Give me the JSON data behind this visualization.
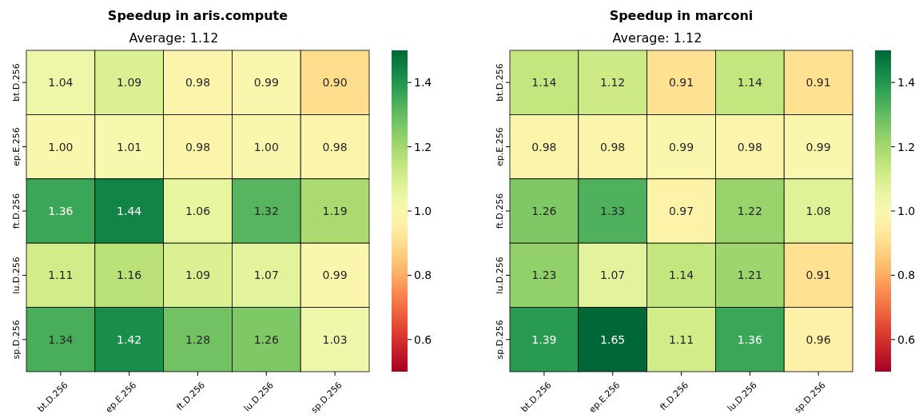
{
  "chart_data": [
    {
      "type": "heatmap",
      "title": "Speedup in aris.compute",
      "subtitle": "Average: 1.12",
      "categories": [
        "bt.D.256",
        "ep.E.256",
        "ft.D.256",
        "lu.D.256",
        "sp.D.256"
      ],
      "y_categories": [
        "bt.D.256",
        "ep.E.256",
        "ft.D.256",
        "lu.D.256",
        "sp.D.256"
      ],
      "cells": [
        [
          1.04,
          1.09,
          0.98,
          0.99,
          0.9
        ],
        [
          1.0,
          1.01,
          0.98,
          1.0,
          0.98
        ],
        [
          1.36,
          1.44,
          1.06,
          1.32,
          1.19
        ],
        [
          1.11,
          1.16,
          1.09,
          1.07,
          0.99
        ],
        [
          1.34,
          1.42,
          1.28,
          1.26,
          1.03
        ]
      ],
      "cell_labels": [
        [
          "1.04",
          "1.09",
          "0.98",
          "0.99",
          "0.90"
        ],
        [
          "1.00",
          "1.01",
          "0.98",
          "1.00",
          "0.98"
        ],
        [
          "1.36",
          "1.44",
          "1.06",
          "1.32",
          "1.19"
        ],
        [
          "1.11",
          "1.16",
          "1.09",
          "1.07",
          "0.99"
        ],
        [
          "1.34",
          "1.42",
          "1.28",
          "1.26",
          "1.03"
        ]
      ],
      "clim": [
        0.5,
        1.5
      ],
      "cticks": [
        0.6,
        0.8,
        {
          "value": 1,
          "label": "1.0"
        },
        1.2,
        1.4
      ]
    },
    {
      "type": "heatmap",
      "title": "Speedup in marconi",
      "subtitle": "Average: 1.12",
      "categories": [
        "bt.D.256",
        "ep.E.256",
        "ft.D.256",
        "lu.D.256",
        "sp.D.256"
      ],
      "y_categories": [
        "bt.D.256",
        "ep.E.256",
        "ft.D.256",
        "lu.D.256",
        "sp.D.256"
      ],
      "cells": [
        [
          1.14,
          1.12,
          0.91,
          1.14,
          0.91
        ],
        [
          0.98,
          0.98,
          0.99,
          0.98,
          0.99
        ],
        [
          1.26,
          1.33,
          0.97,
          1.22,
          1.08
        ],
        [
          1.23,
          1.07,
          1.14,
          1.21,
          0.91
        ],
        [
          1.39,
          1.65,
          1.11,
          1.36,
          0.96
        ]
      ],
      "cell_labels": [
        [
          "1.14",
          "1.12",
          "0.91",
          "1.14",
          "0.91"
        ],
        [
          "0.98",
          "0.98",
          "0.99",
          "0.98",
          "0.99"
        ],
        [
          "1.26",
          "1.33",
          "0.97",
          "1.22",
          "1.08"
        ],
        [
          "1.23",
          "1.07",
          "1.14",
          "1.21",
          "0.91"
        ],
        [
          "1.39",
          "1.65",
          "1.11",
          "1.36",
          "0.96"
        ]
      ],
      "clim": [
        0.5,
        1.5
      ],
      "cticks": [
        0.6,
        0.8,
        {
          "value": 1,
          "label": "1.0"
        },
        1.2,
        1.4
      ]
    }
  ]
}
